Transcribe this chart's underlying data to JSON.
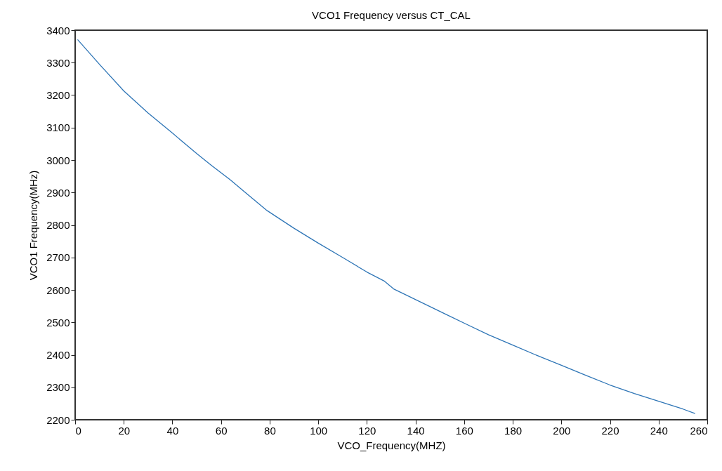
{
  "chart_data": {
    "type": "line",
    "title": "VCO1 Frequency versus CT_CAL",
    "xlabel": "VCO_Frequency(MHZ)",
    "ylabel": "VCO1 Frequency(MHz)",
    "series": [
      {
        "color": "#2e75b6",
        "x": [
          1,
          10,
          20,
          30,
          40,
          50,
          56,
          64,
          70,
          79,
          90,
          100,
          110,
          120,
          127,
          131,
          142,
          153,
          161,
          170,
          180,
          190,
          200,
          210,
          220,
          230,
          240,
          250,
          255
        ],
        "values": [
          3371,
          3295,
          3213,
          3145,
          3083,
          3020,
          2984,
          2938,
          2900,
          2844,
          2790,
          2744,
          2700,
          2655,
          2628,
          2603,
          2563,
          2523,
          2494,
          2462,
          2430,
          2398,
          2368,
          2337,
          2307,
          2281,
          2257,
          2233,
          2219
        ]
      }
    ],
    "xlim": [
      0,
      260
    ],
    "xticks": [
      0,
      20,
      40,
      60,
      80,
      100,
      120,
      140,
      160,
      180,
      200,
      220,
      240,
      260
    ],
    "ylim": [
      2200,
      3400
    ],
    "yticks": [
      2200,
      2300,
      2400,
      2500,
      2600,
      2700,
      2800,
      2900,
      3000,
      3100,
      3200,
      3300,
      3400
    ],
    "grid": false,
    "legend": false,
    "marker": "none",
    "line_style": "solid"
  }
}
